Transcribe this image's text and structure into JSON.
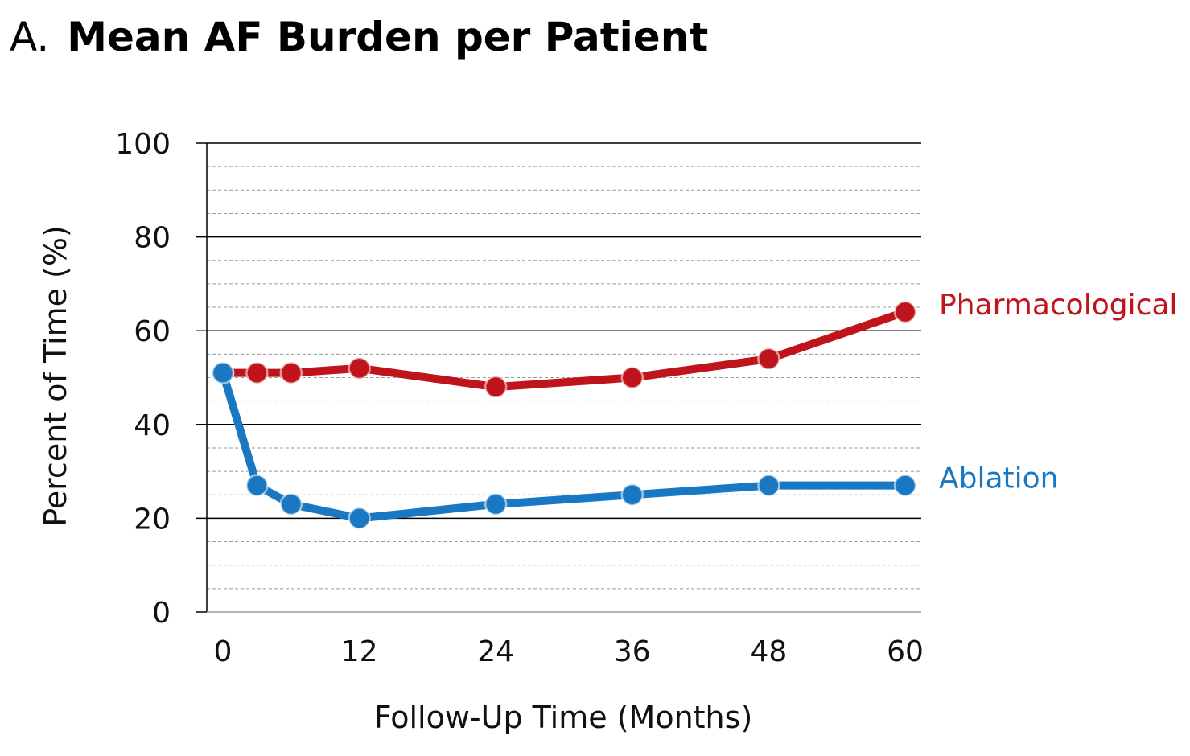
{
  "title": {
    "panel_label": "A.",
    "text": "Mean AF Burden per Patient"
  },
  "chart_data": {
    "type": "line",
    "title": "Mean AF Burden per Patient",
    "xlabel": "Follow-Up Time (Months)",
    "ylabel": "Percent of Time (%)",
    "xlim": [
      0,
      60
    ],
    "ylim": [
      0,
      100
    ],
    "x_ticks": [
      0,
      12,
      24,
      36,
      48,
      60
    ],
    "y_ticks": [
      0,
      20,
      40,
      60,
      80,
      100
    ],
    "major_gridlines": "solid",
    "minor_gridlines": "dashed",
    "minor_step": 5,
    "series": [
      {
        "name": "Pharmacological",
        "color": "#c0141c",
        "x": [
          0,
          3,
          6,
          12,
          24,
          36,
          48,
          60
        ],
        "y": [
          51,
          51,
          51,
          52,
          48,
          50,
          54,
          64
        ]
      },
      {
        "name": "Ablation",
        "color": "#1a78c2",
        "x": [
          0,
          3,
          6,
          12,
          24,
          36,
          48,
          60
        ],
        "y": [
          51,
          27,
          23,
          20,
          23,
          25,
          27,
          27
        ]
      }
    ],
    "legend": "inline-right"
  }
}
